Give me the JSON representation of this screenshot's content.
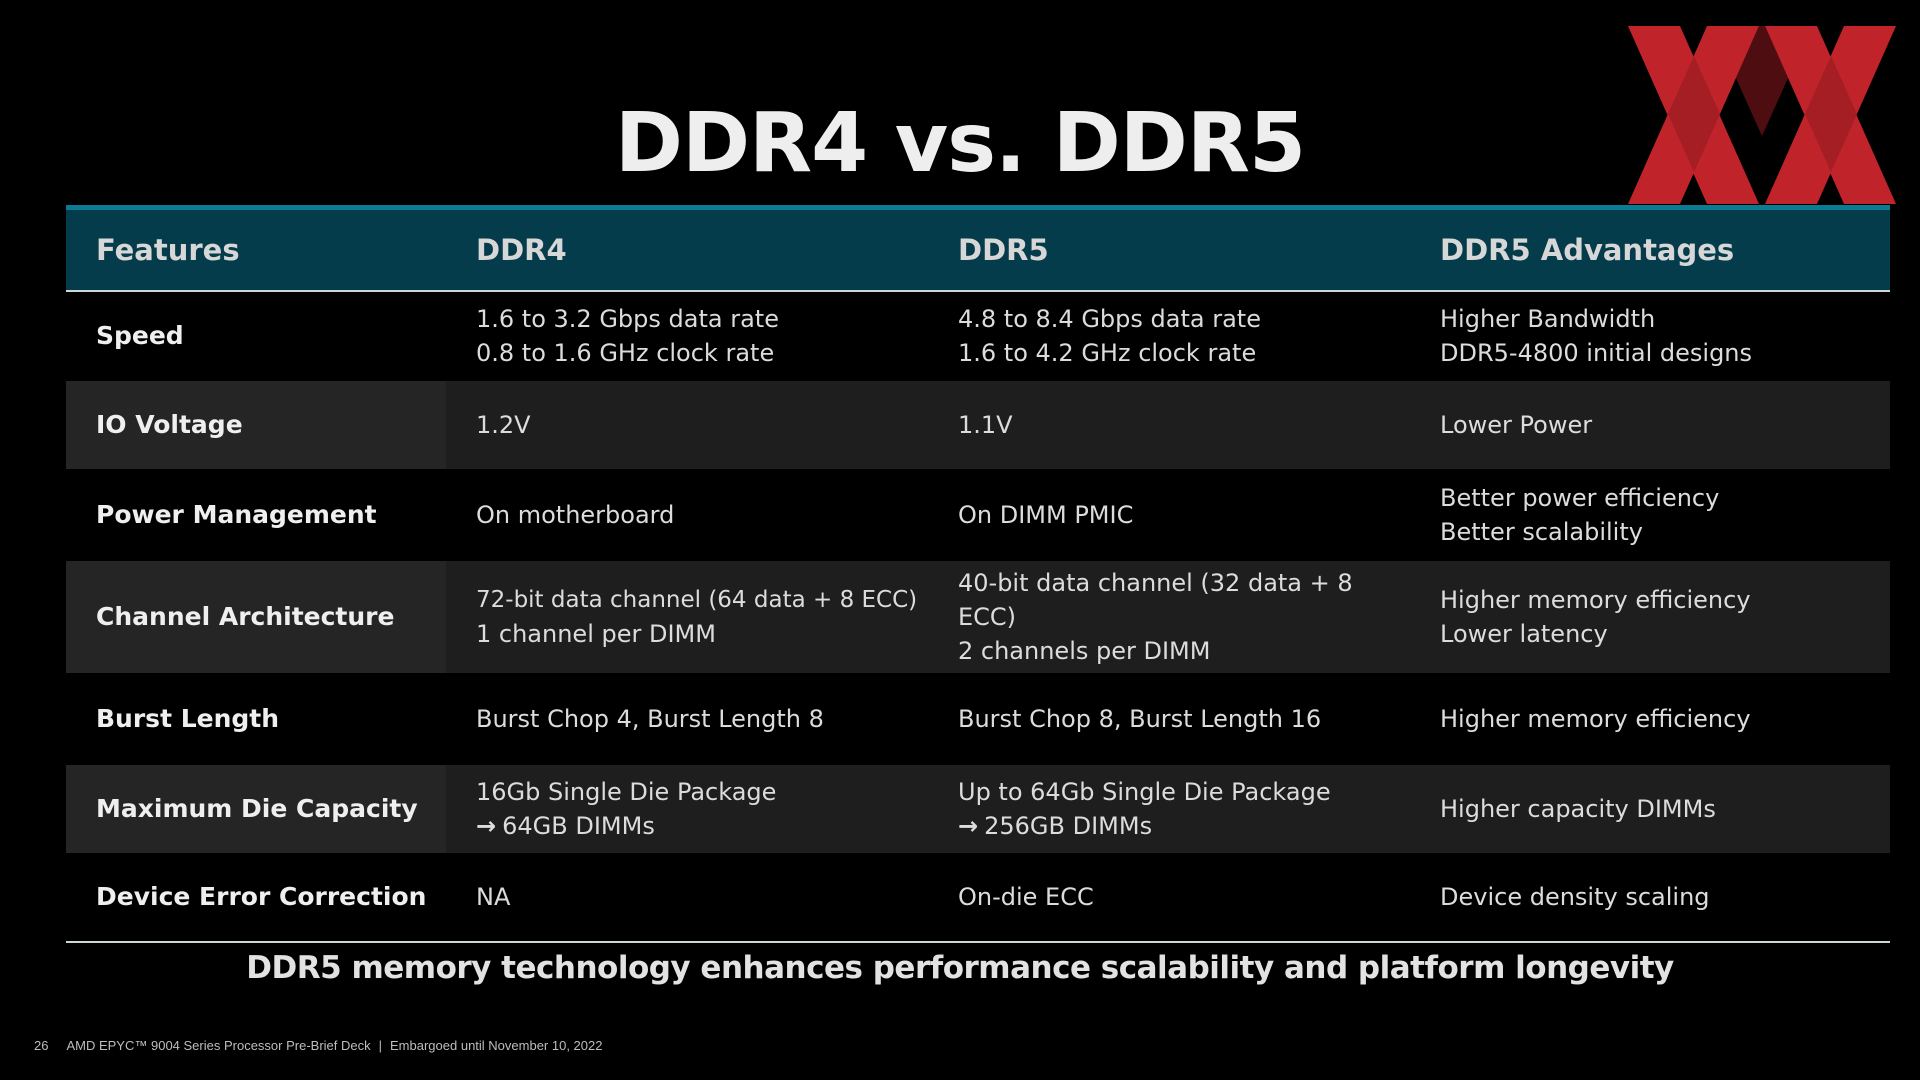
{
  "slide": {
    "title": "DDR4 vs. DDR5",
    "tagline": "DDR5 memory technology enhances performance scalability and platform longevity"
  },
  "brand": {
    "logo_icon": "double-x-logo-icon",
    "logo_color": "#c1232b",
    "header_color": "#053c4c",
    "header_accent_color": "#0b7a92"
  },
  "table": {
    "headers": [
      "Features",
      "DDR4",
      "DDR5",
      "DDR5 Advantages"
    ],
    "rows": [
      {
        "feature": "Speed",
        "ddr4": [
          "1.6 to 3.2 Gbps data rate",
          "0.8 to 1.6 GHz clock rate"
        ],
        "ddr5": [
          "4.8 to 8.4 Gbps data rate",
          "1.6 to 4.2 GHz clock rate"
        ],
        "advantage": [
          "Higher Bandwidth",
          "DDR5-4800 initial designs"
        ]
      },
      {
        "feature": "IO Voltage",
        "ddr4": [
          "1.2V"
        ],
        "ddr5": [
          "1.1V"
        ],
        "advantage": [
          "Lower Power"
        ]
      },
      {
        "feature": "Power Management",
        "ddr4": [
          "On motherboard"
        ],
        "ddr5": [
          "On DIMM PMIC"
        ],
        "advantage": [
          "Better power efficiency",
          "Better scalability"
        ]
      },
      {
        "feature": "Channel Architecture",
        "ddr4": [
          "72-bit data channel (64 data + 8 ECC)",
          "1 channel per DIMM"
        ],
        "ddr5": [
          "40-bit data channel (32 data + 8 ECC)",
          "2 channels per DIMM"
        ],
        "advantage": [
          "Higher memory efficiency",
          "Lower latency"
        ]
      },
      {
        "feature": "Burst Length",
        "ddr4": [
          "Burst Chop 4, Burst Length 8"
        ],
        "ddr5": [
          "Burst Chop 8, Burst Length 16"
        ],
        "advantage": [
          "Higher memory efficiency"
        ]
      },
      {
        "feature": "Maximum Die Capacity",
        "ddr4": [
          "16Gb Single Die Package",
          "64GB DIMMs"
        ],
        "ddr5": [
          "Up to 64Gb Single Die Package",
          "256GB DIMMs"
        ],
        "advantage": [
          "Higher capacity DIMMs"
        ]
      },
      {
        "feature": "Device Error Correction",
        "ddr4": [
          "NA"
        ],
        "ddr5": [
          "On-die ECC"
        ],
        "advantage": [
          "Device density scaling"
        ]
      }
    ],
    "arrow_glyph": "→"
  },
  "footer": {
    "page_number": "26",
    "deck_title": "AMD EPYC™ 9004 Series Processor Pre-Brief Deck",
    "separator": "|",
    "embargo": "Embargoed until November 10, 2022"
  }
}
